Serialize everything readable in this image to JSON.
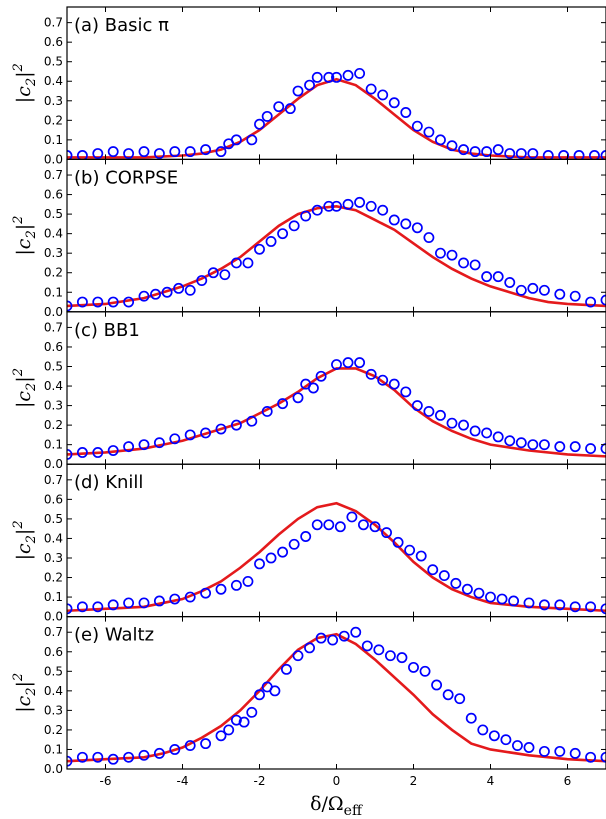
{
  "chart_data": {
    "type": "line",
    "xlabel": "δ/Ω_eff",
    "xlabel_main": "δ/Ω",
    "xlabel_sub": "eff",
    "ylabel_main": "|c",
    "ylabel_sub": "2",
    "ylabel_close": "|",
    "ylabel_sup": "2",
    "xlim": [
      -7,
      7
    ],
    "ylim": [
      0,
      0.78
    ],
    "xticks": [
      -6,
      -4,
      -2,
      0,
      2,
      4,
      6
    ],
    "xtick_labels": [
      "-6",
      "-4",
      "-2",
      "0",
      "2",
      "4",
      "6"
    ],
    "yticks": [
      0.0,
      0.1,
      0.2,
      0.3,
      0.4,
      0.5,
      0.6,
      0.7
    ],
    "ytick_labels": [
      "0.0",
      "0.1",
      "0.2",
      "0.3",
      "0.4",
      "0.5",
      "0.6",
      "0.7"
    ],
    "colors": {
      "theory": "#e41a1c",
      "data": "#0000ff"
    },
    "panels": [
      {
        "label": "(a) Basic π",
        "series": [
          {
            "kind": "line",
            "x": [
              -7,
              -6,
              -5,
              -4,
              -3.5,
              -3,
              -2.5,
              -2,
              -1.5,
              -1,
              -0.5,
              0,
              0.5,
              1,
              1.5,
              2,
              2.5,
              3,
              3.5,
              4,
              5,
              6,
              7
            ],
            "y": [
              0.01,
              0.01,
              0.01,
              0.02,
              0.03,
              0.05,
              0.09,
              0.15,
              0.23,
              0.31,
              0.38,
              0.41,
              0.38,
              0.31,
              0.23,
              0.15,
              0.09,
              0.05,
              0.03,
              0.02,
              0.01,
              0.01,
              0.01
            ]
          },
          {
            "kind": "scatter",
            "x": [
              -7,
              -6.6,
              -6.2,
              -5.8,
              -5.4,
              -5,
              -4.6,
              -4.2,
              -3.8,
              -3.4,
              -3,
              -2.8,
              -2.6,
              -2.2,
              -2,
              -1.8,
              -1.5,
              -1.2,
              -1,
              -0.7,
              -0.5,
              -0.2,
              0,
              0.3,
              0.6,
              0.9,
              1.2,
              1.5,
              1.8,
              2.1,
              2.4,
              2.7,
              3,
              3.3,
              3.6,
              3.9,
              4.2,
              4.5,
              4.8,
              5.1,
              5.5,
              5.9,
              6.3,
              6.7,
              7
            ],
            "y": [
              0.02,
              0.02,
              0.03,
              0.04,
              0.03,
              0.04,
              0.03,
              0.04,
              0.04,
              0.05,
              0.04,
              0.08,
              0.1,
              0.1,
              0.18,
              0.22,
              0.27,
              0.26,
              0.35,
              0.38,
              0.42,
              0.42,
              0.42,
              0.43,
              0.44,
              0.36,
              0.33,
              0.29,
              0.24,
              0.17,
              0.14,
              0.1,
              0.07,
              0.05,
              0.04,
              0.04,
              0.05,
              0.03,
              0.03,
              0.03,
              0.02,
              0.02,
              0.02,
              0.02,
              0.02
            ]
          }
        ]
      },
      {
        "label": "(b) CORPSE",
        "series": [
          {
            "kind": "line",
            "x": [
              -7,
              -6,
              -5,
              -4.5,
              -4,
              -3.5,
              -3,
              -2.5,
              -2,
              -1.5,
              -1,
              -0.5,
              0,
              0.5,
              1,
              1.5,
              2,
              2.5,
              3,
              3.5,
              4,
              4.5,
              5,
              5.5,
              6,
              7
            ],
            "y": [
              0.03,
              0.04,
              0.07,
              0.1,
              0.13,
              0.17,
              0.22,
              0.28,
              0.36,
              0.44,
              0.5,
              0.53,
              0.54,
              0.52,
              0.47,
              0.42,
              0.35,
              0.28,
              0.22,
              0.17,
              0.13,
              0.1,
              0.07,
              0.05,
              0.04,
              0.03
            ]
          },
          {
            "kind": "scatter",
            "x": [
              -7,
              -6.6,
              -6.2,
              -5.8,
              -5.4,
              -5,
              -4.7,
              -4.4,
              -4.1,
              -3.8,
              -3.5,
              -3.2,
              -2.9,
              -2.6,
              -2.3,
              -2,
              -1.7,
              -1.4,
              -1.1,
              -0.8,
              -0.5,
              -0.2,
              0,
              0.3,
              0.6,
              0.9,
              1.2,
              1.5,
              1.8,
              2.1,
              2.4,
              2.7,
              3,
              3.3,
              3.6,
              3.9,
              4.2,
              4.5,
              4.8,
              5.1,
              5.4,
              5.8,
              6.2,
              6.6,
              7
            ],
            "y": [
              0.03,
              0.05,
              0.05,
              0.05,
              0.05,
              0.08,
              0.09,
              0.1,
              0.12,
              0.11,
              0.16,
              0.2,
              0.19,
              0.25,
              0.25,
              0.32,
              0.36,
              0.4,
              0.44,
              0.49,
              0.52,
              0.54,
              0.54,
              0.55,
              0.56,
              0.54,
              0.52,
              0.47,
              0.45,
              0.43,
              0.38,
              0.3,
              0.29,
              0.25,
              0.24,
              0.18,
              0.18,
              0.15,
              0.11,
              0.12,
              0.11,
              0.09,
              0.08,
              0.05,
              0.06
            ]
          }
        ]
      },
      {
        "label": "(c) BB1",
        "series": [
          {
            "kind": "line",
            "x": [
              -7,
              -6,
              -5,
              -4.5,
              -4,
              -3.5,
              -3,
              -2.5,
              -2,
              -1.5,
              -1,
              -0.5,
              0,
              0.5,
              1,
              1.5,
              2,
              2.5,
              3,
              3.5,
              4,
              5,
              6,
              7
            ],
            "y": [
              0.05,
              0.06,
              0.08,
              0.1,
              0.12,
              0.15,
              0.18,
              0.21,
              0.26,
              0.31,
              0.37,
              0.44,
              0.49,
              0.49,
              0.45,
              0.38,
              0.29,
              0.22,
              0.17,
              0.13,
              0.1,
              0.07,
              0.05,
              0.04
            ]
          },
          {
            "kind": "scatter",
            "x": [
              -7,
              -6.6,
              -6.2,
              -5.8,
              -5.4,
              -5,
              -4.6,
              -4.2,
              -3.8,
              -3.4,
              -3,
              -2.6,
              -2.2,
              -1.8,
              -1.4,
              -1,
              -0.8,
              -0.6,
              -0.4,
              0,
              0.3,
              0.6,
              0.9,
              1.2,
              1.5,
              1.8,
              2.1,
              2.4,
              2.7,
              3,
              3.3,
              3.6,
              3.9,
              4.2,
              4.5,
              4.8,
              5.1,
              5.4,
              5.8,
              6.2,
              6.6,
              7
            ],
            "y": [
              0.05,
              0.06,
              0.06,
              0.07,
              0.09,
              0.1,
              0.11,
              0.13,
              0.15,
              0.16,
              0.18,
              0.2,
              0.22,
              0.27,
              0.31,
              0.34,
              0.41,
              0.39,
              0.45,
              0.51,
              0.52,
              0.52,
              0.46,
              0.43,
              0.41,
              0.37,
              0.3,
              0.27,
              0.25,
              0.21,
              0.2,
              0.17,
              0.16,
              0.14,
              0.12,
              0.11,
              0.1,
              0.1,
              0.09,
              0.09,
              0.08,
              0.08
            ]
          }
        ]
      },
      {
        "label": "(d) Knill",
        "series": [
          {
            "kind": "line",
            "x": [
              -7,
              -6,
              -5,
              -4.5,
              -4,
              -3.5,
              -3,
              -2.5,
              -2,
              -1.5,
              -1,
              -0.5,
              0,
              0.5,
              1,
              1.5,
              2,
              2.5,
              3,
              3.5,
              4,
              5,
              6,
              7
            ],
            "y": [
              0.03,
              0.04,
              0.05,
              0.07,
              0.09,
              0.13,
              0.18,
              0.25,
              0.33,
              0.42,
              0.5,
              0.56,
              0.58,
              0.54,
              0.47,
              0.38,
              0.28,
              0.2,
              0.14,
              0.1,
              0.07,
              0.05,
              0.04,
              0.03
            ]
          },
          {
            "kind": "scatter",
            "x": [
              -7,
              -6.6,
              -6.2,
              -5.8,
              -5.4,
              -5,
              -4.6,
              -4.2,
              -3.8,
              -3.4,
              -3,
              -2.6,
              -2.3,
              -2,
              -1.7,
              -1.4,
              -1.1,
              -0.8,
              -0.5,
              -0.2,
              0.1,
              0.4,
              0.7,
              1,
              1.3,
              1.6,
              1.9,
              2.2,
              2.5,
              2.8,
              3.1,
              3.4,
              3.7,
              4,
              4.3,
              4.6,
              5,
              5.4,
              5.8,
              6.2,
              6.6,
              7
            ],
            "y": [
              0.04,
              0.05,
              0.05,
              0.06,
              0.07,
              0.07,
              0.08,
              0.09,
              0.1,
              0.12,
              0.14,
              0.16,
              0.18,
              0.27,
              0.3,
              0.33,
              0.37,
              0.41,
              0.47,
              0.47,
              0.46,
              0.51,
              0.47,
              0.46,
              0.43,
              0.38,
              0.34,
              0.31,
              0.24,
              0.21,
              0.17,
              0.14,
              0.12,
              0.1,
              0.09,
              0.08,
              0.07,
              0.06,
              0.06,
              0.05,
              0.05,
              0.04
            ]
          }
        ]
      },
      {
        "label": "(e) Waltz",
        "series": [
          {
            "kind": "line",
            "x": [
              -7,
              -6,
              -5,
              -4.5,
              -4,
              -3.5,
              -3,
              -2.5,
              -2,
              -1.5,
              -1,
              -0.5,
              0,
              0.5,
              1,
              1.5,
              2,
              2.5,
              3,
              3.5,
              4,
              5,
              6,
              7
            ],
            "y": [
              0.04,
              0.05,
              0.06,
              0.08,
              0.11,
              0.16,
              0.22,
              0.3,
              0.4,
              0.51,
              0.61,
              0.67,
              0.69,
              0.64,
              0.56,
              0.47,
              0.38,
              0.28,
              0.2,
              0.13,
              0.1,
              0.07,
              0.05,
              0.04
            ]
          },
          {
            "kind": "scatter",
            "x": [
              -7,
              -6.6,
              -6.2,
              -5.8,
              -5.4,
              -5,
              -4.6,
              -4.2,
              -3.8,
              -3.4,
              -3,
              -2.8,
              -2.6,
              -2.4,
              -2.2,
              -2,
              -1.8,
              -1.6,
              -1.3,
              -1,
              -0.7,
              -0.4,
              -0.1,
              0.2,
              0.5,
              0.8,
              1.1,
              1.4,
              1.7,
              2,
              2.3,
              2.6,
              2.9,
              3.2,
              3.5,
              3.8,
              4.1,
              4.4,
              4.7,
              5,
              5.4,
              5.8,
              6.2,
              6.6,
              7
            ],
            "y": [
              0.04,
              0.06,
              0.06,
              0.05,
              0.06,
              0.07,
              0.08,
              0.1,
              0.12,
              0.13,
              0.17,
              0.2,
              0.25,
              0.24,
              0.29,
              0.38,
              0.42,
              0.4,
              0.51,
              0.58,
              0.62,
              0.67,
              0.66,
              0.68,
              0.7,
              0.63,
              0.61,
              0.58,
              0.57,
              0.52,
              0.5,
              0.43,
              0.38,
              0.36,
              0.26,
              0.2,
              0.17,
              0.15,
              0.12,
              0.11,
              0.09,
              0.09,
              0.08,
              0.06,
              0.06
            ]
          }
        ]
      }
    ]
  }
}
